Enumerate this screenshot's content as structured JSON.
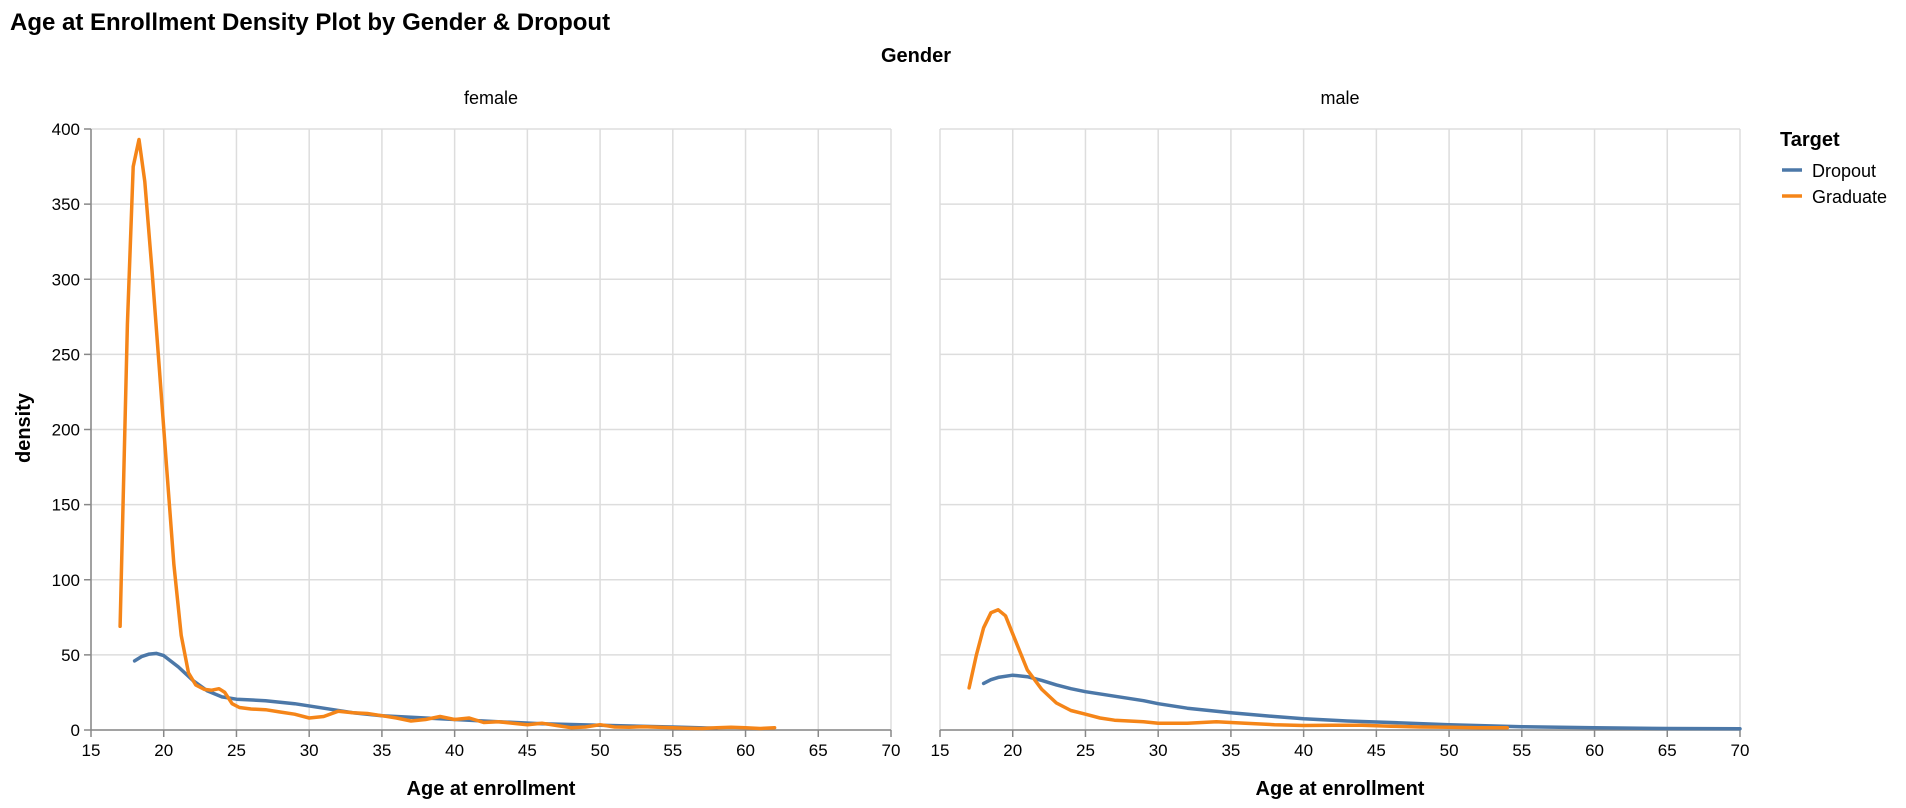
{
  "chart_data": {
    "type": "line",
    "title": "Age at Enrollment Density Plot by Gender & Dropout",
    "facet_header": "Gender",
    "xlabel": "Age at enrollment",
    "ylabel": "density",
    "xlim": [
      15,
      70
    ],
    "ylim": [
      0,
      400
    ],
    "x_ticks": [
      15,
      20,
      25,
      30,
      35,
      40,
      45,
      50,
      55,
      60,
      65,
      70
    ],
    "y_ticks": [
      0,
      50,
      100,
      150,
      200,
      250,
      300,
      350,
      400
    ],
    "grid": true,
    "legend": {
      "title": "Target",
      "placement": "right",
      "entries": [
        {
          "name": "Dropout",
          "color": "#4c78a8"
        },
        {
          "name": "Graduate",
          "color": "#f58518"
        }
      ]
    },
    "facets": [
      {
        "label": "female",
        "series": [
          {
            "name": "Dropout",
            "color": "#4c78a8",
            "points": [
              [
                18,
                46
              ],
              [
                18.5,
                49
              ],
              [
                19,
                50.5
              ],
              [
                19.5,
                51
              ],
              [
                20,
                49.5
              ],
              [
                21,
                42
              ],
              [
                22,
                33
              ],
              [
                23,
                26
              ],
              [
                24,
                22
              ],
              [
                25,
                20.5
              ],
              [
                27,
                19.5
              ],
              [
                29,
                17.5
              ],
              [
                31,
                14.5
              ],
              [
                33,
                11.5
              ],
              [
                35,
                9.5
              ],
              [
                38,
                8
              ],
              [
                40,
                7
              ],
              [
                43,
                5.5
              ],
              [
                46,
                4.2
              ],
              [
                50,
                3.2
              ],
              [
                55,
                2
              ],
              [
                58,
                1.2
              ]
            ]
          },
          {
            "name": "Graduate",
            "color": "#f58518",
            "points": [
              [
                17,
                69
              ],
              [
                17.5,
                270
              ],
              [
                17.9,
                375
              ],
              [
                18.3,
                393
              ],
              [
                18.7,
                365
              ],
              [
                19.2,
                305
              ],
              [
                19.7,
                240
              ],
              [
                20.2,
                175
              ],
              [
                20.7,
                110
              ],
              [
                21.2,
                63
              ],
              [
                21.7,
                38
              ],
              [
                22.2,
                30
              ],
              [
                22.8,
                27
              ],
              [
                23.3,
                26.5
              ],
              [
                23.8,
                27.5
              ],
              [
                24.2,
                25
              ],
              [
                24.7,
                17.5
              ],
              [
                25.2,
                15
              ],
              [
                26,
                14
              ],
              [
                27,
                13.5
              ],
              [
                28,
                12
              ],
              [
                29,
                10.5
              ],
              [
                30,
                8
              ],
              [
                31,
                9
              ],
              [
                32,
                12.5
              ],
              [
                33,
                11.5
              ],
              [
                34,
                11
              ],
              [
                35,
                9.5
              ],
              [
                36,
                8
              ],
              [
                37,
                6
              ],
              [
                38,
                7
              ],
              [
                39,
                9
              ],
              [
                40,
                7
              ],
              [
                41,
                8
              ],
              [
                42,
                5
              ],
              [
                43,
                5.5
              ],
              [
                44,
                4.5
              ],
              [
                45,
                3.5
              ],
              [
                46,
                4.5
              ],
              [
                47,
                3
              ],
              [
                48,
                1.5
              ],
              [
                49,
                2
              ],
              [
                50,
                3.5
              ],
              [
                51,
                2
              ],
              [
                52,
                1.8
              ],
              [
                53,
                2.2
              ],
              [
                54,
                1.8
              ],
              [
                55,
                1.5
              ],
              [
                56,
                1.2
              ],
              [
                57,
                1
              ],
              [
                58,
                1.5
              ],
              [
                59,
                1.8
              ],
              [
                60,
                1.5
              ],
              [
                61,
                1
              ],
              [
                62,
                1.5
              ]
            ]
          }
        ]
      },
      {
        "label": "male",
        "series": [
          {
            "name": "Dropout",
            "color": "#4c78a8",
            "points": [
              [
                18,
                31
              ],
              [
                18.5,
                33.5
              ],
              [
                19,
                35
              ],
              [
                20,
                36.5
              ],
              [
                21,
                35.5
              ],
              [
                22,
                33
              ],
              [
                23,
                30
              ],
              [
                24,
                27.5
              ],
              [
                25,
                25.5
              ],
              [
                27,
                22.5
              ],
              [
                29,
                19.5
              ],
              [
                30,
                17.5
              ],
              [
                32,
                14.5
              ],
              [
                35,
                11.5
              ],
              [
                38,
                9
              ],
              [
                40,
                7.5
              ],
              [
                43,
                6
              ],
              [
                46,
                5
              ],
              [
                50,
                3.5
              ],
              [
                55,
                2.2
              ],
              [
                60,
                1.5
              ],
              [
                65,
                1
              ],
              [
                70,
                0.8
              ]
            ]
          },
          {
            "name": "Graduate",
            "color": "#f58518",
            "points": [
              [
                17,
                28
              ],
              [
                17.5,
                50
              ],
              [
                18,
                68
              ],
              [
                18.5,
                78
              ],
              [
                19,
                80
              ],
              [
                19.5,
                76
              ],
              [
                20,
                64
              ],
              [
                20.5,
                52
              ],
              [
                21,
                40
              ],
              [
                22,
                27
              ],
              [
                23,
                18
              ],
              [
                24,
                13
              ],
              [
                25,
                10.5
              ],
              [
                26,
                8
              ],
              [
                27,
                6.5
              ],
              [
                28,
                6
              ],
              [
                29,
                5.5
              ],
              [
                30,
                4.5
              ],
              [
                32,
                4.5
              ],
              [
                34,
                5.5
              ],
              [
                36,
                4.5
              ],
              [
                38,
                3.5
              ],
              [
                40,
                3
              ],
              [
                42,
                3.2
              ],
              [
                44,
                3.2
              ],
              [
                46,
                2.5
              ],
              [
                48,
                2
              ],
              [
                50,
                1.8
              ],
              [
                52,
                1.5
              ],
              [
                54,
                1.5
              ]
            ]
          }
        ]
      }
    ]
  }
}
